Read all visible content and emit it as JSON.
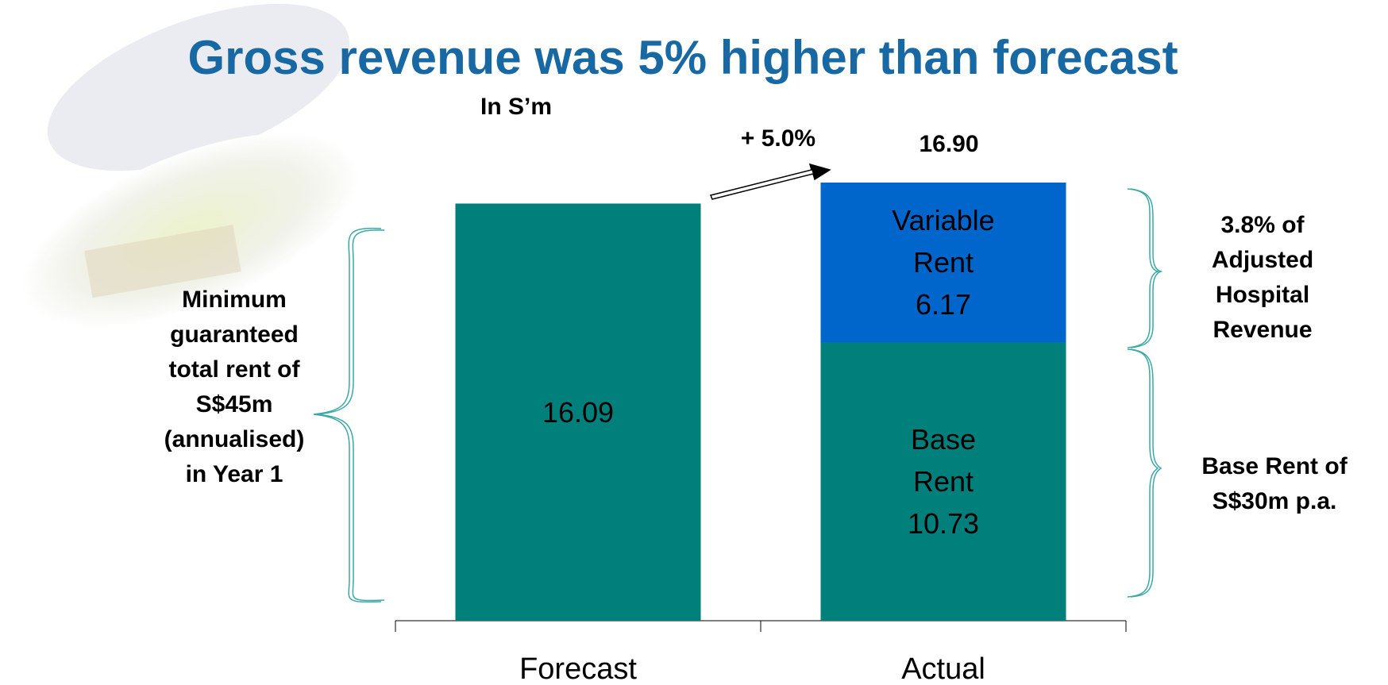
{
  "chart_data": {
    "type": "stacked-bar",
    "title": "Gross revenue was 5% higher than forecast",
    "subtitle": "In S’m",
    "categories": [
      "Forecast",
      "Actual"
    ],
    "series": [
      {
        "name": "Base Rent",
        "color": "#007f7b",
        "values": [
          16.09,
          10.73
        ]
      },
      {
        "name": "Variable Rent",
        "color": "#0066cc",
        "values": [
          null,
          6.17
        ]
      }
    ],
    "annotations": {
      "change": "+ 5.0%",
      "total": "16.90",
      "left_note": [
        "Minimum",
        "guaranteed",
        "total rent of",
        "S$45m",
        "(annualised)",
        "in Year 1"
      ],
      "right_top_note": [
        "3.8% of",
        "Adjusted",
        "Hospital",
        "Revenue"
      ],
      "right_bottom_note": [
        "Base Rent of",
        "S$30m p.a."
      ]
    }
  }
}
